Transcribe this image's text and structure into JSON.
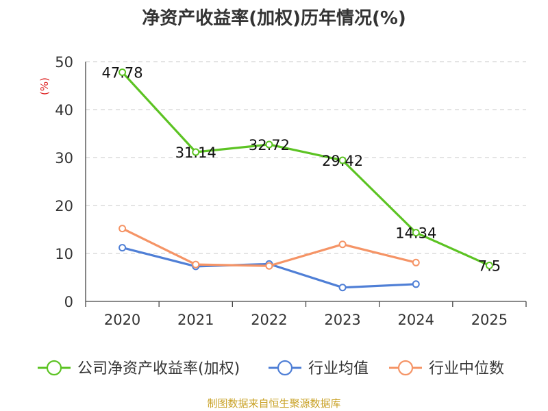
{
  "chart_data": {
    "type": "line",
    "title": "净资产收益率(加权)历年情况(%)",
    "ylabel": "(%)",
    "xlabel": "",
    "categories": [
      "2020",
      "2021",
      "2022",
      "2023",
      "2024",
      "2025"
    ],
    "ylim": [
      0,
      50
    ],
    "yticks": [
      0,
      10,
      20,
      30,
      40,
      50
    ],
    "grid": true,
    "legend_position": "bottom",
    "series": [
      {
        "name": "公司净资产收益率(加权)",
        "color": "#5cc323",
        "values": [
          47.78,
          31.14,
          32.72,
          29.42,
          14.34,
          7.5
        ],
        "value_labels": [
          "47.78",
          "31.14",
          "32.72",
          "29.42",
          "14.34",
          "7.5"
        ],
        "show_labels": true
      },
      {
        "name": "行业均值",
        "color": "#4f7fd6",
        "values": [
          11.2,
          7.3,
          7.8,
          2.9,
          3.6,
          null
        ],
        "show_labels": false
      },
      {
        "name": "行业中位数",
        "color": "#f59466",
        "values": [
          15.2,
          7.7,
          7.4,
          11.9,
          8.1,
          null
        ],
        "show_labels": false
      }
    ]
  },
  "footer": {
    "source": "制图数据来自恒生聚源数据库"
  }
}
